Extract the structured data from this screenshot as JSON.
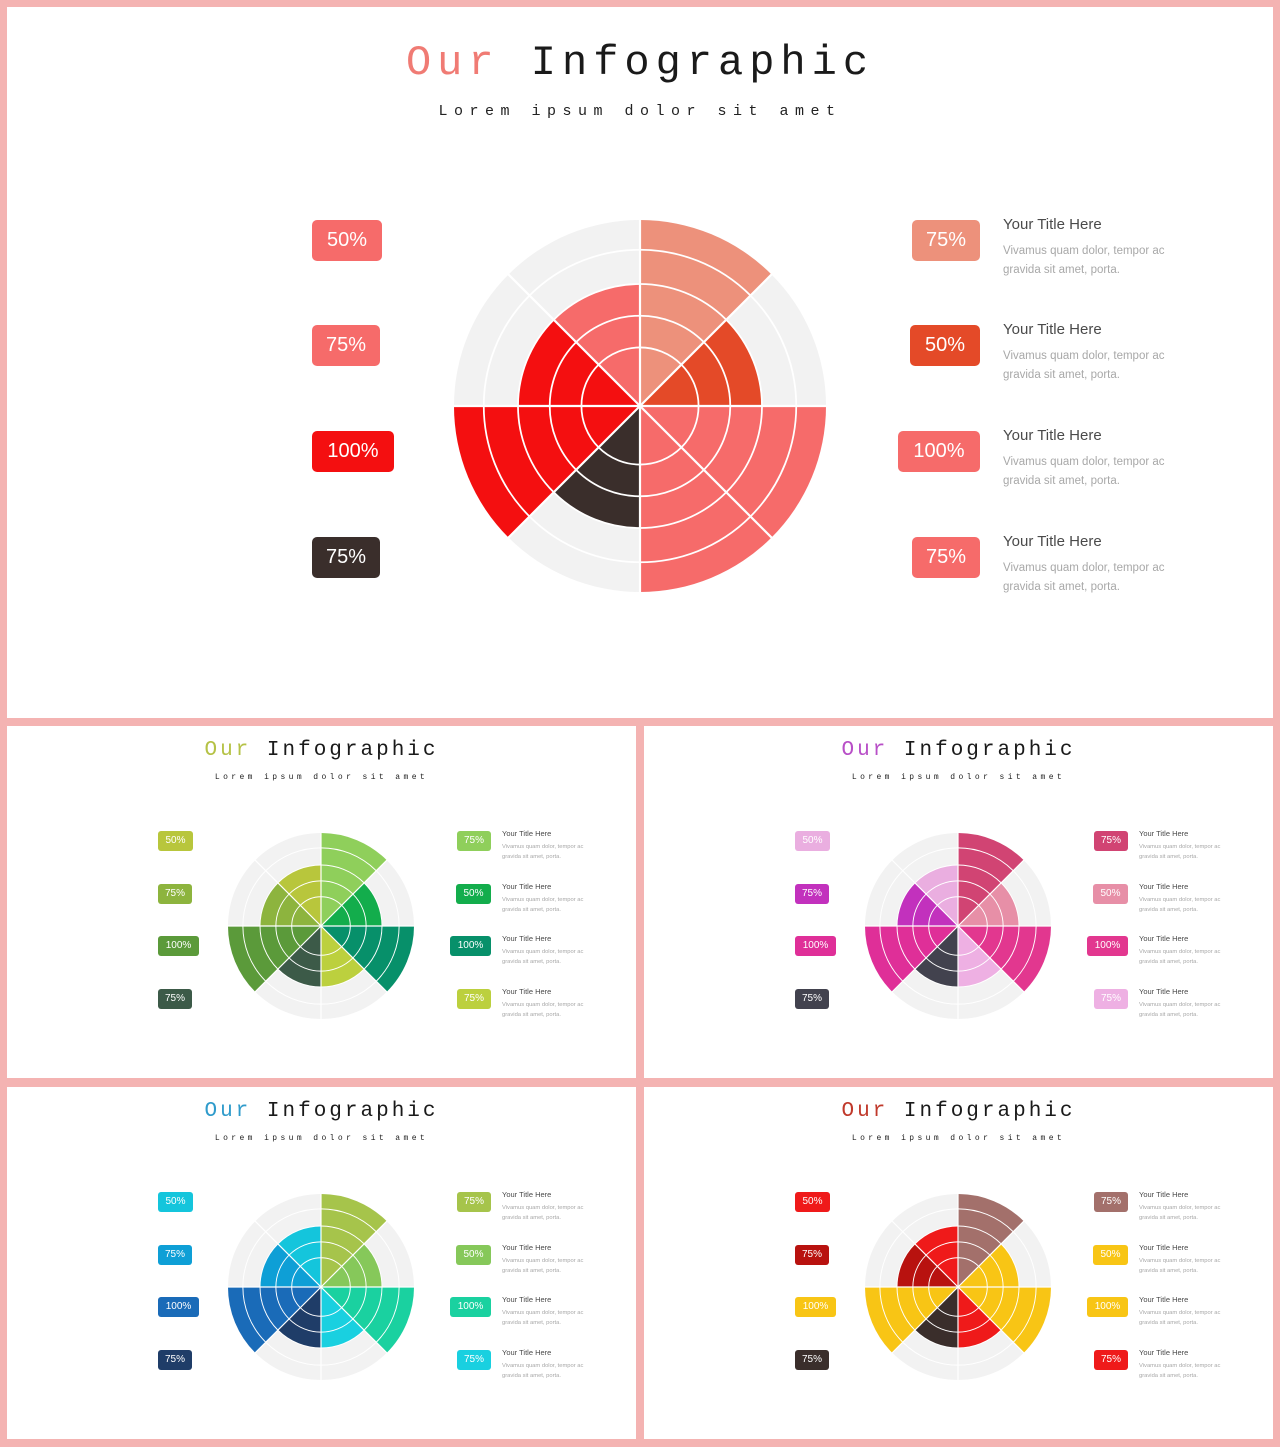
{
  "common": {
    "title_word1": "Our",
    "title_word2": "Infographic",
    "subtitle": "Lorem ipsum dolor sit amet",
    "item_title": "Your Title Here",
    "item_desc_line1": "Vivamus quam dolor, tempor ac",
    "item_desc_line2": "gravida sit amet, porta."
  },
  "slides": [
    {
      "key": "main",
      "accent": "#f07b74",
      "left_items": [
        {
          "badge": "50%",
          "color": "#f66b6a"
        },
        {
          "badge": "75%",
          "color": "#f66b6a"
        },
        {
          "badge": "100%",
          "color": "#f40f10"
        },
        {
          "badge": "75%",
          "color": "#3a2e2b"
        }
      ],
      "right_items": [
        {
          "badge": "75%",
          "color": "#ed917b"
        },
        {
          "badge": "50%",
          "color": "#e44a28"
        },
        {
          "badge": "100%",
          "color": "#f66b6a"
        },
        {
          "badge": "75%",
          "color": "#f66b6a"
        }
      ],
      "chart_data": {
        "type": "polar-area",
        "ring_levels": 3,
        "segments": [
          {
            "value": 100,
            "color": "#ed917b"
          },
          {
            "value": 66,
            "color": "#e44a28"
          },
          {
            "value": 100,
            "color": "#f66b6a"
          },
          {
            "value": 100,
            "color": "#f66b6a"
          },
          {
            "value": 66,
            "color": "#3a2e2b"
          },
          {
            "value": 100,
            "color": "#f40f10"
          },
          {
            "value": 66,
            "color": "#f40f10"
          },
          {
            "value": 66,
            "color": "#f66b6a"
          }
        ]
      }
    },
    {
      "key": "green",
      "accent": "#b5c246",
      "left_items": [
        {
          "badge": "50%",
          "color": "#b8c63c"
        },
        {
          "badge": "75%",
          "color": "#8db43e"
        },
        {
          "badge": "100%",
          "color": "#5b9a3a"
        },
        {
          "badge": "75%",
          "color": "#3c5a48"
        }
      ],
      "right_items": [
        {
          "badge": "75%",
          "color": "#8fcf5b"
        },
        {
          "badge": "50%",
          "color": "#13ad4c"
        },
        {
          "badge": "100%",
          "color": "#07906a"
        },
        {
          "badge": "75%",
          "color": "#bcd03e"
        }
      ],
      "chart_data": {
        "type": "polar-area",
        "ring_levels": 3,
        "segments": [
          {
            "value": 100,
            "color": "#8fcf5b"
          },
          {
            "value": 66,
            "color": "#13ad4c"
          },
          {
            "value": 100,
            "color": "#07906a"
          },
          {
            "value": 66,
            "color": "#bcd03e"
          },
          {
            "value": 66,
            "color": "#3c5a48"
          },
          {
            "value": 100,
            "color": "#5b9a3a"
          },
          {
            "value": 66,
            "color": "#8db43e"
          },
          {
            "value": 66,
            "color": "#b8c63c"
          }
        ]
      }
    },
    {
      "key": "magenta",
      "accent": "#b84fc7",
      "left_items": [
        {
          "badge": "50%",
          "color": "#eaaee0"
        },
        {
          "badge": "75%",
          "color": "#c231bd"
        },
        {
          "badge": "100%",
          "color": "#df2f98"
        },
        {
          "badge": "75%",
          "color": "#42424e"
        }
      ],
      "right_items": [
        {
          "badge": "75%",
          "color": "#d14473"
        },
        {
          "badge": "50%",
          "color": "#e78fa7"
        },
        {
          "badge": "100%",
          "color": "#e2378f"
        },
        {
          "badge": "75%",
          "color": "#eeb0e3"
        }
      ],
      "chart_data": {
        "type": "polar-area",
        "ring_levels": 3,
        "segments": [
          {
            "value": 100,
            "color": "#d14473"
          },
          {
            "value": 66,
            "color": "#e78fa7"
          },
          {
            "value": 100,
            "color": "#e2378f"
          },
          {
            "value": 66,
            "color": "#eeb0e3"
          },
          {
            "value": 66,
            "color": "#42424e"
          },
          {
            "value": 100,
            "color": "#df2f98"
          },
          {
            "value": 66,
            "color": "#c231bd"
          },
          {
            "value": 66,
            "color": "#eaaee0"
          }
        ]
      }
    },
    {
      "key": "blue",
      "accent": "#2f9bcb",
      "left_items": [
        {
          "badge": "50%",
          "color": "#14c5dc"
        },
        {
          "badge": "75%",
          "color": "#0e9fd6"
        },
        {
          "badge": "100%",
          "color": "#1a6bb8"
        },
        {
          "badge": "75%",
          "color": "#1f3d68"
        }
      ],
      "right_items": [
        {
          "badge": "75%",
          "color": "#a6c44b"
        },
        {
          "badge": "50%",
          "color": "#86c85a"
        },
        {
          "badge": "100%",
          "color": "#1ad1a0"
        },
        {
          "badge": "75%",
          "color": "#19d0e0"
        }
      ],
      "chart_data": {
        "type": "polar-area",
        "ring_levels": 3,
        "segments": [
          {
            "value": 100,
            "color": "#a6c44b"
          },
          {
            "value": 66,
            "color": "#86c85a"
          },
          {
            "value": 100,
            "color": "#1ad1a0"
          },
          {
            "value": 66,
            "color": "#19d0e0"
          },
          {
            "value": 66,
            "color": "#1f3d68"
          },
          {
            "value": 100,
            "color": "#1a6bb8"
          },
          {
            "value": 66,
            "color": "#0e9fd6"
          },
          {
            "value": 66,
            "color": "#14c5dc"
          }
        ]
      }
    },
    {
      "key": "warm",
      "accent": "#c0392b",
      "left_items": [
        {
          "badge": "50%",
          "color": "#ef1a1a"
        },
        {
          "badge": "75%",
          "color": "#b8120f"
        },
        {
          "badge": "100%",
          "color": "#f8c515"
        },
        {
          "badge": "75%",
          "color": "#3a2e2b"
        }
      ],
      "right_items": [
        {
          "badge": "75%",
          "color": "#a3706b"
        },
        {
          "badge": "50%",
          "color": "#f8c515"
        },
        {
          "badge": "100%",
          "color": "#f8c515"
        },
        {
          "badge": "75%",
          "color": "#ef1a1a"
        }
      ],
      "chart_data": {
        "type": "polar-area",
        "ring_levels": 3,
        "segments": [
          {
            "value": 100,
            "color": "#a3706b"
          },
          {
            "value": 66,
            "color": "#f8c515"
          },
          {
            "value": 100,
            "color": "#f8c515"
          },
          {
            "value": 66,
            "color": "#ef1a1a"
          },
          {
            "value": 66,
            "color": "#3a2e2b"
          },
          {
            "value": 100,
            "color": "#f8c515"
          },
          {
            "value": 66,
            "color": "#b8120f"
          },
          {
            "value": 66,
            "color": "#ef1a1a"
          }
        ]
      }
    }
  ]
}
